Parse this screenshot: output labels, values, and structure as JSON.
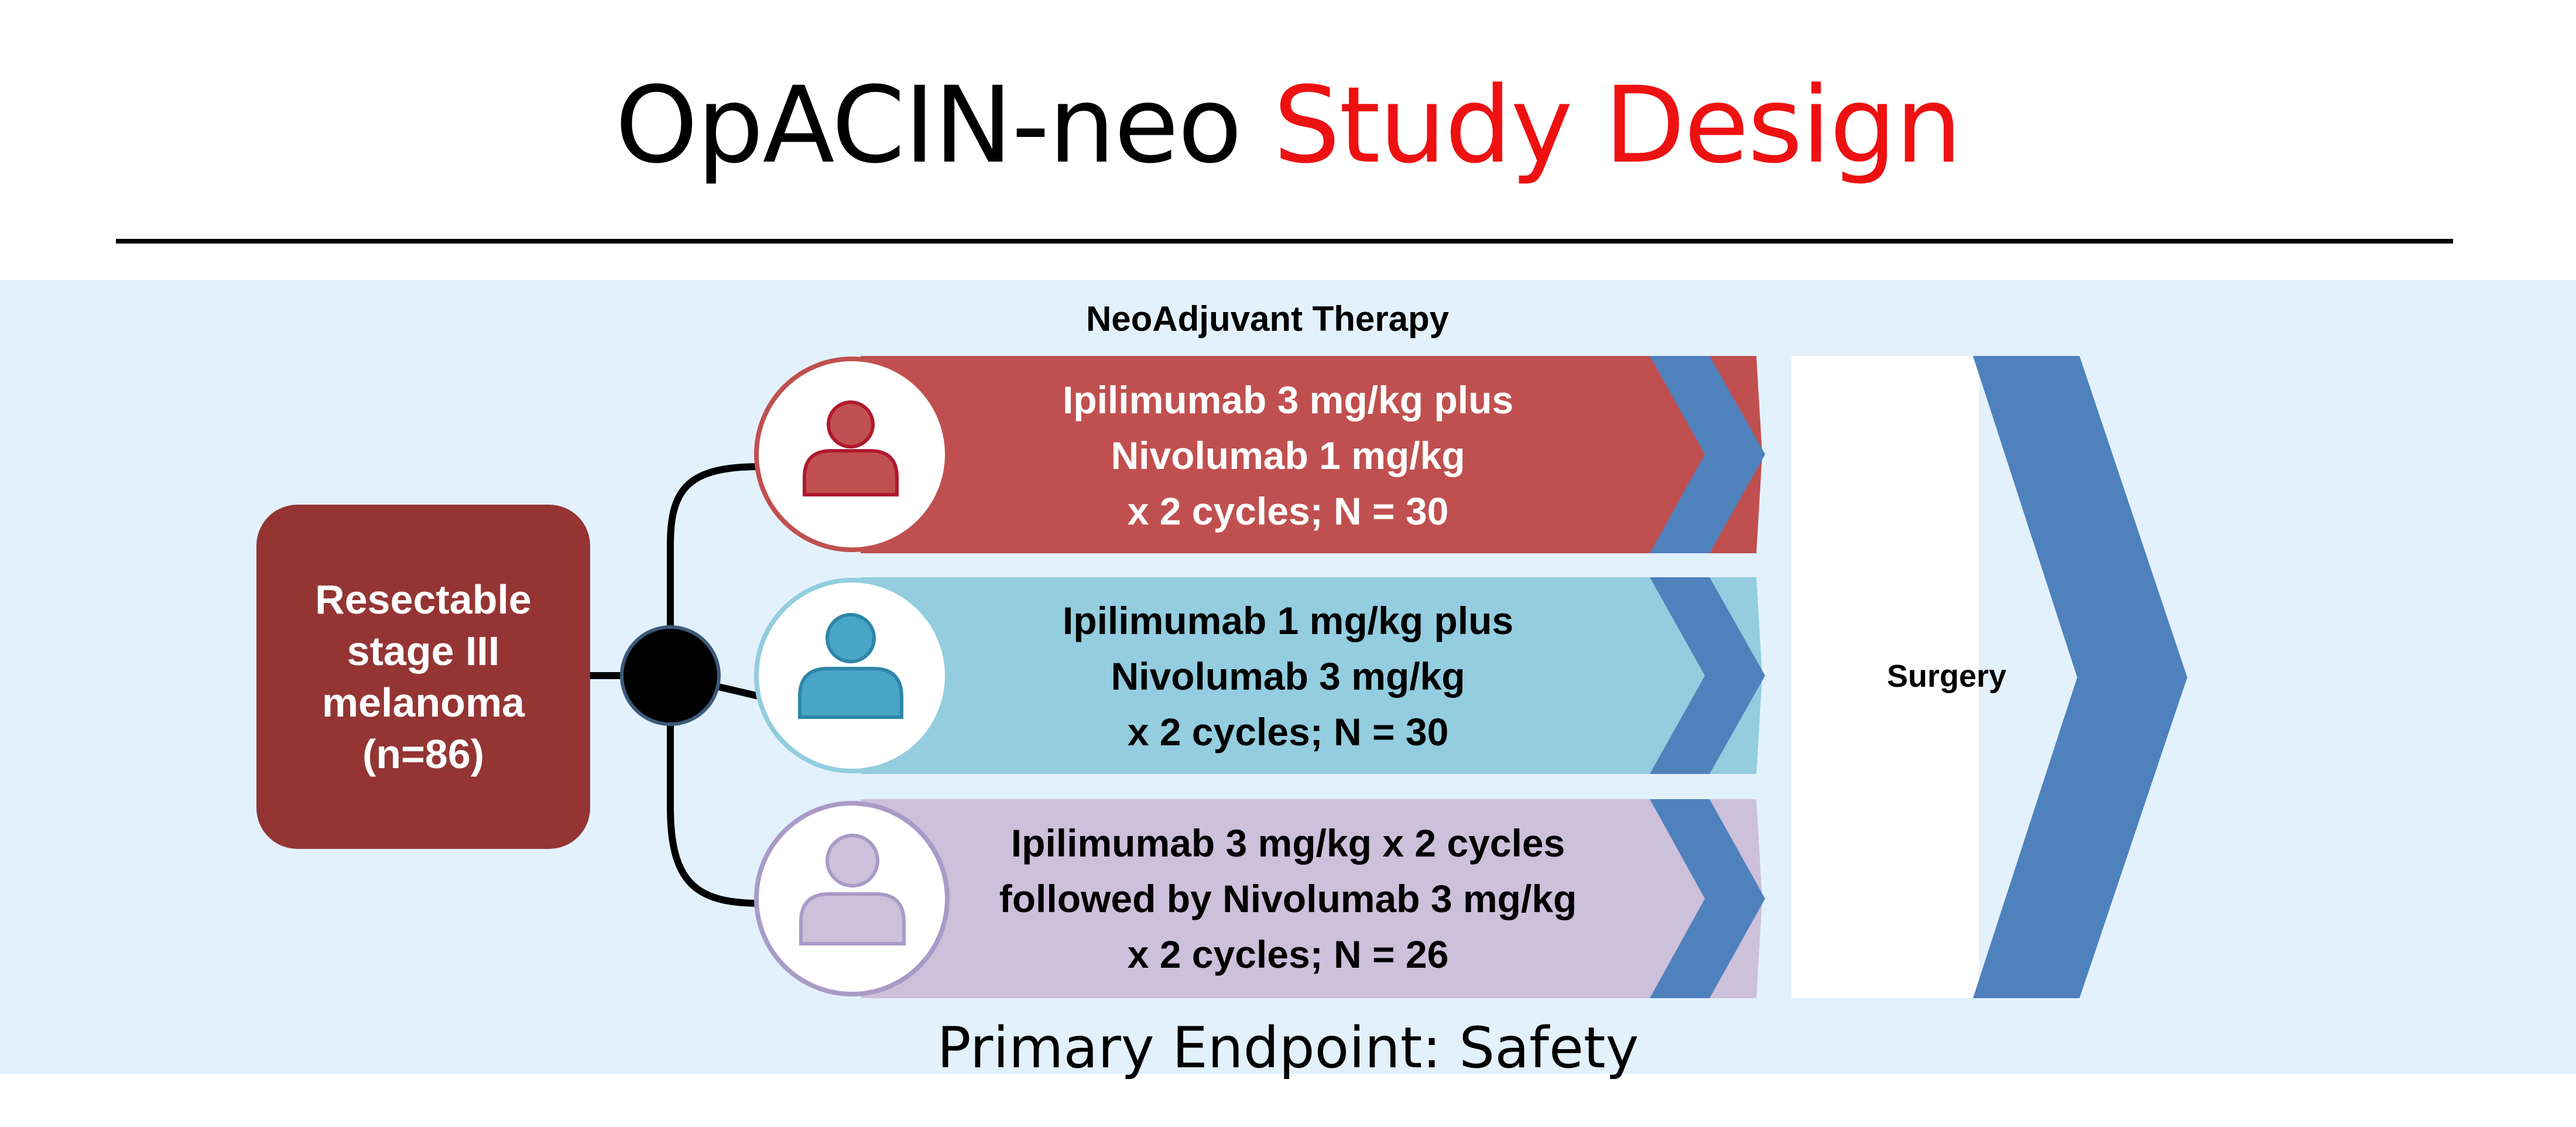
{
  "title": {
    "part1": "OpACIN-neo ",
    "part2": "Study Design"
  },
  "section_label": "NeoAdjuvant Therapy",
  "origin": {
    "label": "Resectable\nstage III\nmelanoma\n(n=86)"
  },
  "arms": [
    {
      "label": "Ipilimumab 3 mg/kg plus\nNivolumab 1 mg/kg\nx 2 cycles; N = 30",
      "fill": "#c0504f",
      "text_color": "#ffffff",
      "icon_color": "#b0182f"
    },
    {
      "label": "Ipilimumab 1 mg/kg plus\nNivolumab 3 mg/kg\nx 2 cycles; N = 30",
      "fill": "#93cddf",
      "text_color": "#000000",
      "icon_color": "#48a5c6"
    },
    {
      "label": "Ipilimumab 3 mg/kg x 2 cycles\nfollowed by Nivolumab 3 mg/kg\nx 2 cycles; N = 26",
      "fill": "#ccc0da",
      "text_color": "#000000",
      "icon_color": "#b5a7cf"
    }
  ],
  "surgery": {
    "label": "Surgery"
  },
  "endpoint": "Primary Endpoint: Safety",
  "colors": {
    "chevron": "#4f81bd",
    "title_accent": "#ee1111",
    "panel_bg": "#e3f1fd"
  }
}
